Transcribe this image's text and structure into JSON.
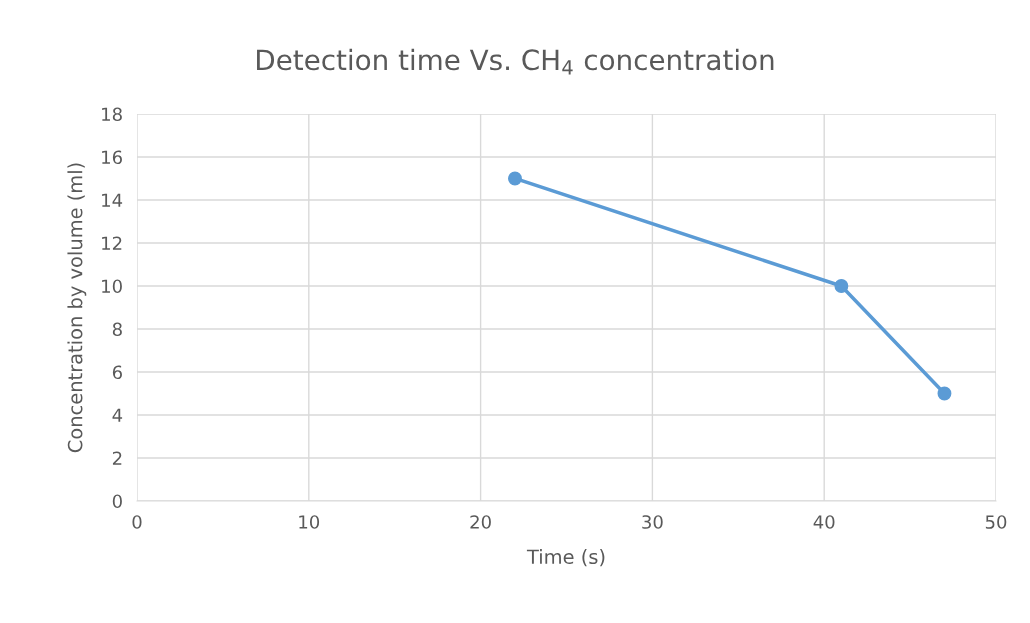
{
  "chart_data": {
    "type": "line",
    "title": "Detection time Vs. CH$_{4}$ concentration",
    "xlabel": "Time (s)",
    "ylabel": "Concentration by volume (ml)",
    "x": [
      22,
      41,
      47
    ],
    "series": [
      {
        "color": "#5b9bd5",
        "values": [
          15,
          10,
          5
        ]
      }
    ],
    "xlim": [
      0,
      50
    ],
    "xticks": [
      0,
      10,
      20,
      30,
      40,
      50
    ],
    "ylim": [
      0,
      18
    ],
    "yticks": [
      0,
      2,
      4,
      6,
      8,
      10,
      12,
      14,
      16,
      18
    ],
    "grid": true,
    "marker": "circle",
    "line_style": "solid"
  }
}
